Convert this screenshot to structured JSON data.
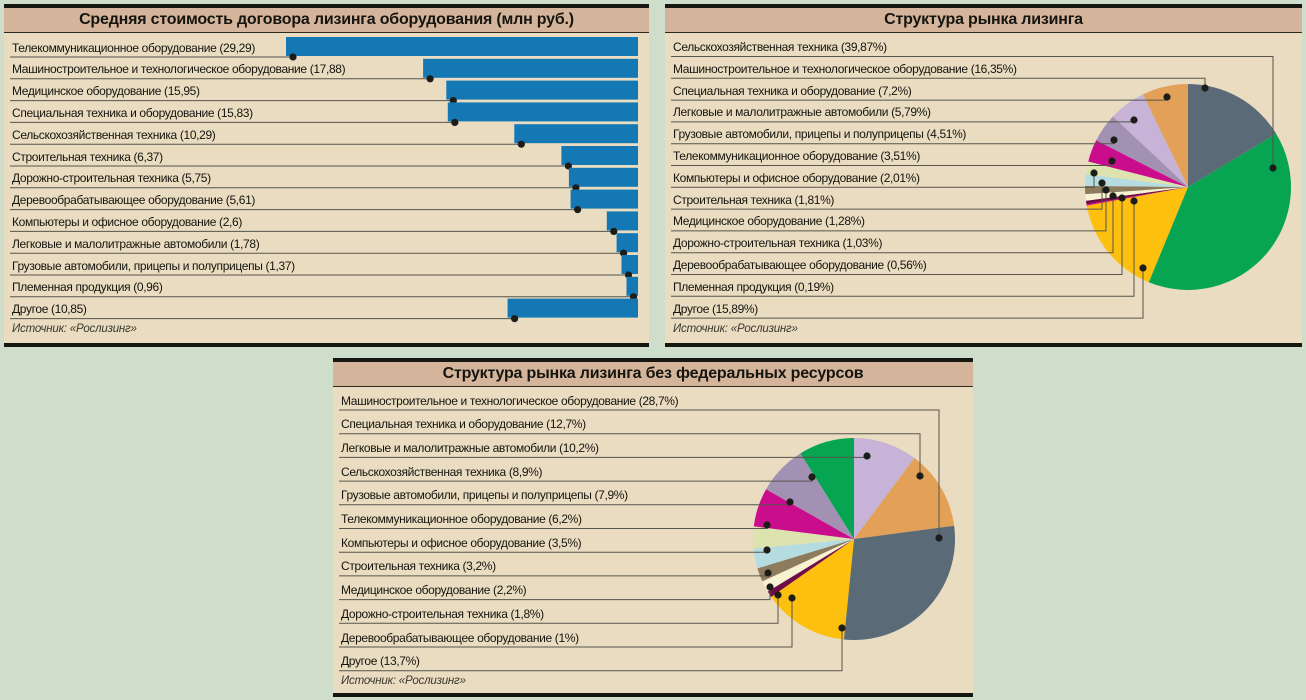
{
  "ui": {
    "page_bg": "#cfdecb",
    "panel_bg": "#e9dcc1",
    "title_bg": "#d4b59c",
    "frame": "#161613",
    "title_rule": "#2b2a23",
    "rule": "#56554b",
    "dot": "#1c1c18",
    "text": "#15140e",
    "source_text": "#3a382e",
    "bar_blue": "#1478b5"
  },
  "palette": {
    "agriculture": "#07a452",
    "machinery": "#5a6b77",
    "special": "#e2a156",
    "cars": "#c7b2d8",
    "trucks": "#a391b3",
    "telecom": "#c90d8c",
    "computers": "#dce3af",
    "construction": "#b5dce1",
    "medical": "#8d7b5e",
    "road": "#f7f2d2",
    "wood": "#6e0d49",
    "breeding": "#e60684",
    "other": "#fdc00e"
  },
  "chart_data": [
    {
      "type": "bar",
      "title": "Средняя стоимость договора лизинга оборудования (млн руб.)",
      "source": "Источник: «Рослизинг»",
      "unit": "млн руб.",
      "xlim": [
        0,
        29.29
      ],
      "items": [
        {
          "name": "Телекоммуникационное оборудование",
          "label": "Телекоммуникационное оборудование (29,29)",
          "value": 29.29
        },
        {
          "name": "Машиностроительное и технологическое оборудование",
          "label": "Машиностроительное и технологическое оборудование (17,88)",
          "value": 17.88
        },
        {
          "name": "Медицинское оборудование",
          "label": "Медицинское оборудование (15,95)",
          "value": 15.95
        },
        {
          "name": "Специальная техника и оборудование",
          "label": "Специальная техника и оборудование (15,83)",
          "value": 15.83
        },
        {
          "name": "Сельскохозяйственная техника",
          "label": "Сельскохозяйственная техника (10,29)",
          "value": 10.29
        },
        {
          "name": "Строительная техника",
          "label": "Строительная техника (6,37)",
          "value": 6.37
        },
        {
          "name": "Дорожно-строительная техника",
          "label": "Дорожно-строительная техника (5,75)",
          "value": 5.75
        },
        {
          "name": "Деревообрабатывающее оборудование",
          "label": "Деревообрабатывающее оборудование (5,61)",
          "value": 5.61
        },
        {
          "name": "Компьютеры и офисное оборудование",
          "label": "Компьютеры и офисное оборудование (2,6)",
          "value": 2.6
        },
        {
          "name": "Легковые и малолитражные автомобили",
          "label": "Легковые и малолитражные автомобили (1,78)",
          "value": 1.78
        },
        {
          "name": "Грузовые автомобили, прицепы и полуприцепы",
          "label": "Грузовые автомобили, прицепы и полуприцепы (1,37)",
          "value": 1.37
        },
        {
          "name": "Племенная продукция",
          "label": "Племенная продукция (0,96)",
          "value": 0.96
        },
        {
          "name": "Другое",
          "label": "Другое (10,85)",
          "value": 10.85
        }
      ]
    },
    {
      "type": "pie",
      "title": "Структура рынка лизинга",
      "source": "Источник: «Рослизинг»",
      "clockwise_order": [
        1,
        0,
        12,
        11,
        10,
        9,
        8,
        7,
        6,
        5,
        4,
        3,
        2
      ],
      "items": [
        {
          "name": "Сельскохозяйственная техника",
          "label": "Сельскохозяйственная техника (39,87%)",
          "value": 39.87,
          "color": "agriculture"
        },
        {
          "name": "Машиностроительное и технологическое оборудование",
          "label": "Машиностроительное и технологическое оборудование (16,35%)",
          "value": 16.35,
          "color": "machinery"
        },
        {
          "name": "Специальная техника и оборудование",
          "label": "Специальная техника и оборудование (7,2%)",
          "value": 7.2,
          "color": "special"
        },
        {
          "name": "Легковые и малолитражные автомобили",
          "label": "Легковые и малолитражные автомобили (5,79%)",
          "value": 5.79,
          "color": "cars"
        },
        {
          "name": "Грузовые автомобили, прицепы и полуприцепы",
          "label": "Грузовые автомобили, прицепы и полуприцепы (4,51%)",
          "value": 4.51,
          "color": "trucks"
        },
        {
          "name": "Телекоммуникационное оборудование",
          "label": "Телекоммуникационное оборудование (3,51%)",
          "value": 3.51,
          "color": "telecom"
        },
        {
          "name": "Компьютеры и офисное оборудование",
          "label": "Компьютеры и офисное оборудование (2,01%)",
          "value": 2.01,
          "color": "computers"
        },
        {
          "name": "Строительная техника",
          "label": "Строительная техника (1,81%)",
          "value": 1.81,
          "color": "construction"
        },
        {
          "name": "Медицинское оборудование",
          "label": "Медицинское оборудование (1,28%)",
          "value": 1.28,
          "color": "medical"
        },
        {
          "name": "Дорожно-строительная техника",
          "label": "Дорожно-строительная техника (1,03%)",
          "value": 1.03,
          "color": "road"
        },
        {
          "name": "Деревообрабатывающее оборудование",
          "label": "Деревообрабатывающее оборудование (0,56%)",
          "value": 0.56,
          "color": "wood"
        },
        {
          "name": "Племенная продукция",
          "label": "Племенная продукция (0,19%)",
          "value": 0.19,
          "color": "breeding"
        },
        {
          "name": "Другое",
          "label": "Другое (15,89%)",
          "value": 15.89,
          "color": "other"
        }
      ]
    },
    {
      "type": "pie",
      "title": "Структура рынка лизинга без федеральных ресурсов",
      "source": "Источник: «Рослизинг»",
      "clockwise_order": [
        2,
        1,
        0,
        11,
        10,
        9,
        8,
        7,
        6,
        5,
        4,
        3
      ],
      "items": [
        {
          "name": "Машиностроительное и технологическое оборудование",
          "label": "Машиностроительное и технологическое оборудование (28,7%)",
          "value": 28.7,
          "color": "machinery"
        },
        {
          "name": "Специальная техника и оборудование",
          "label": "Специальная техника и оборудование (12,7%)",
          "value": 12.7,
          "color": "special"
        },
        {
          "name": "Легковые и малолитражные автомобили",
          "label": "Легковые и малолитражные автомобили (10,2%)",
          "value": 10.2,
          "color": "cars"
        },
        {
          "name": "Сельскохозяйственная техника",
          "label": "Сельскохозяйственная техника (8,9%)",
          "value": 8.9,
          "color": "agriculture"
        },
        {
          "name": "Грузовые автомобили, прицепы и полуприцепы",
          "label": "Грузовые автомобили, прицепы и полуприцепы (7,9%)",
          "value": 7.9,
          "color": "trucks"
        },
        {
          "name": "Телекоммуникационное оборудование",
          "label": "Телекоммуникационное оборудование (6,2%)",
          "value": 6.2,
          "color": "telecom"
        },
        {
          "name": "Компьютеры и офисное оборудование",
          "label": "Компьютеры и офисное оборудование (3,5%)",
          "value": 3.5,
          "color": "computers"
        },
        {
          "name": "Строительная техника",
          "label": "Строительная техника (3,2%)",
          "value": 3.2,
          "color": "construction"
        },
        {
          "name": "Медицинское оборудование",
          "label": "Медицинское оборудование (2,2%)",
          "value": 2.2,
          "color": "medical"
        },
        {
          "name": "Дорожно-строительная техника",
          "label": "Дорожно-строительная техника (1,8%)",
          "value": 1.8,
          "color": "road"
        },
        {
          "name": "Деревообрабатывающее оборудование",
          "label": "Деревообрабатывающее оборудование (1%)",
          "value": 1.0,
          "color": "wood"
        },
        {
          "name": "Другое",
          "label": "Другое (13,7%)",
          "value": 13.7,
          "color": "other"
        }
      ]
    }
  ]
}
